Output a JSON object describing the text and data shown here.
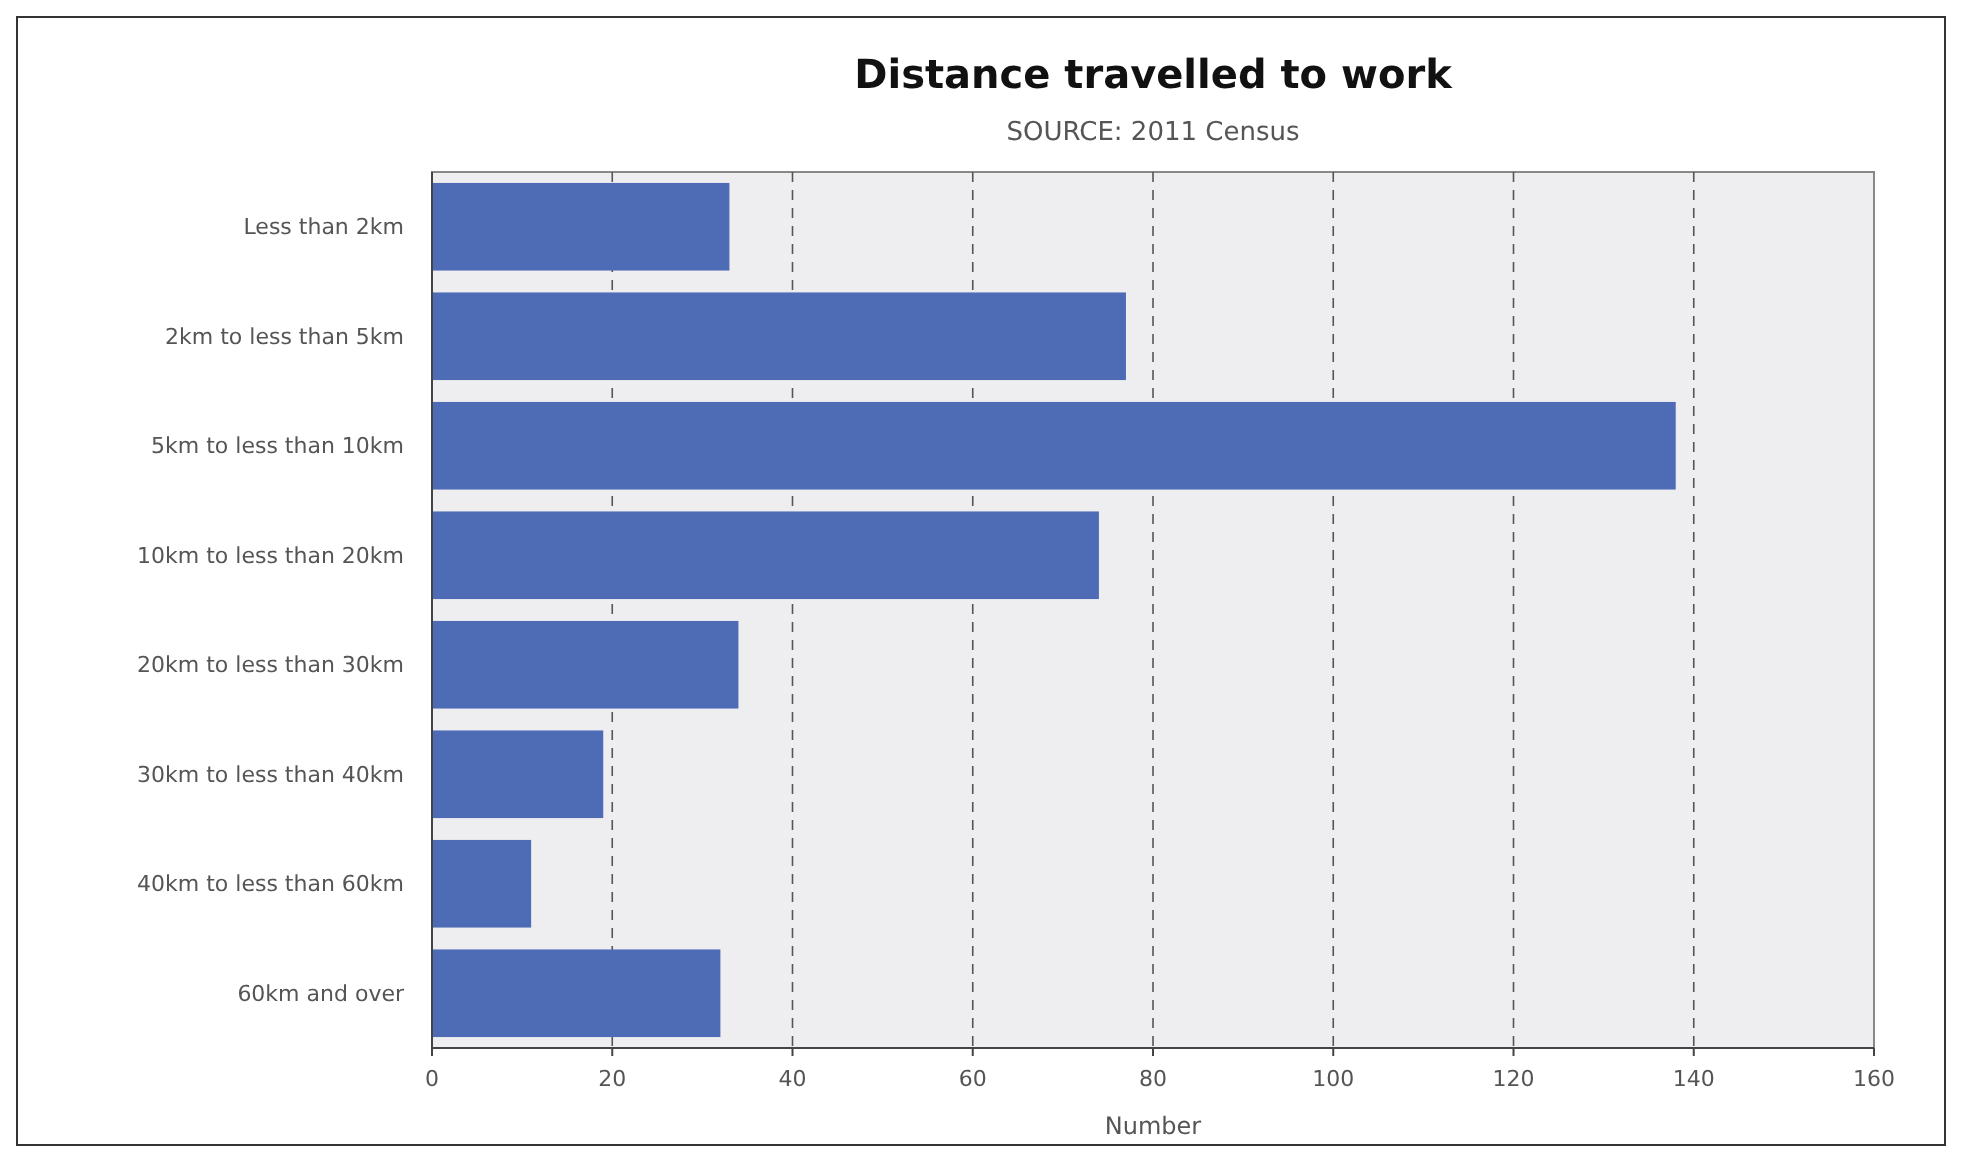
{
  "chart_data": {
    "type": "bar",
    "orientation": "horizontal",
    "title": "Distance travelled to work",
    "subtitle": "SOURCE: 2011 Census",
    "xlabel": "Number",
    "categories": [
      "Less than 2km",
      "2km to less than 5km",
      "5km to less than 10km",
      "10km to less than 20km",
      "20km to less than 30km",
      "30km to less than 40km",
      "40km to less than 60km",
      "60km and over"
    ],
    "values": [
      33,
      77,
      138,
      74,
      34,
      19,
      11,
      32
    ],
    "color": "#4e6bb5",
    "xlim": [
      0,
      160
    ],
    "xticks": [
      0,
      20,
      40,
      60,
      80,
      100,
      120,
      140,
      160
    ],
    "grid": "x"
  }
}
